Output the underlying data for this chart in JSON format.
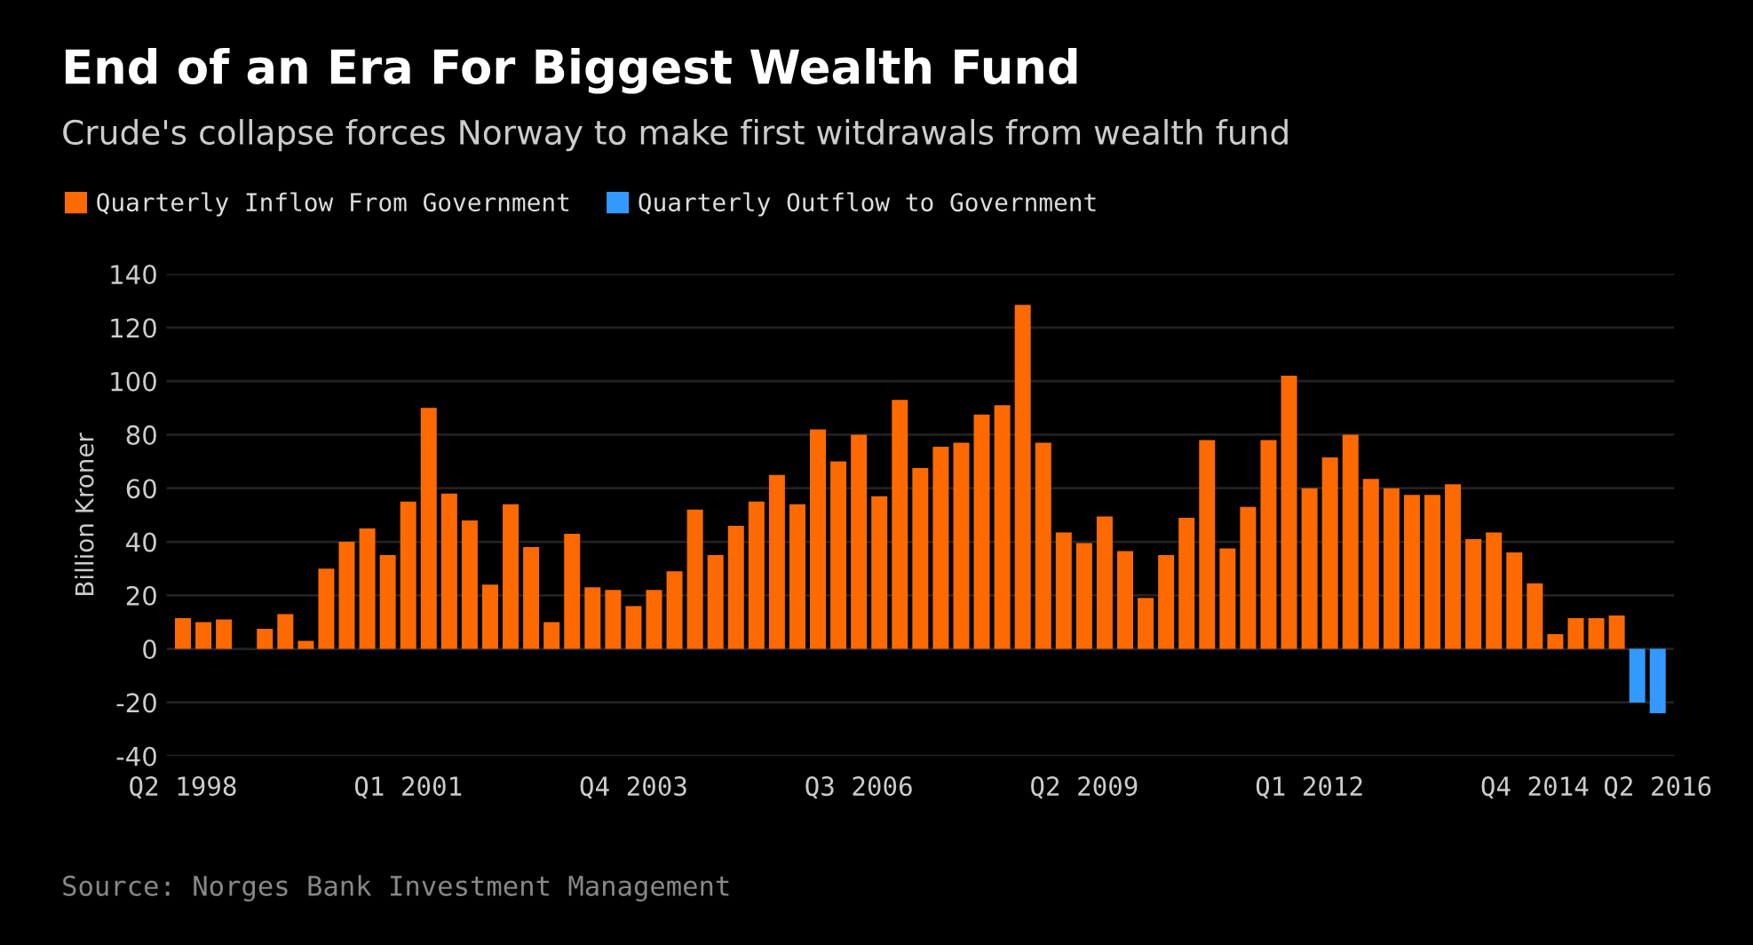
{
  "chart_data": {
    "type": "bar",
    "title": "End of an Era For Biggest Wealth Fund",
    "subtitle": "Crude's collapse forces Norway to make first witdrawals from wealth fund",
    "ylabel": "Billion Kroner",
    "categories": [
      "Q2 1998",
      null,
      null,
      null,
      null,
      null,
      null,
      null,
      null,
      null,
      null,
      "Q1 2001",
      null,
      null,
      null,
      null,
      null,
      null,
      null,
      null,
      null,
      null,
      "Q4 2003",
      null,
      null,
      null,
      null,
      null,
      null,
      null,
      null,
      null,
      null,
      "Q3 2006",
      null,
      null,
      null,
      null,
      null,
      null,
      null,
      null,
      null,
      null,
      "Q2 2009",
      null,
      null,
      null,
      null,
      null,
      null,
      null,
      null,
      null,
      null,
      "Q1 2012",
      null,
      null,
      null,
      null,
      null,
      null,
      null,
      null,
      null,
      null,
      "Q4 2014",
      null,
      null,
      null,
      null,
      null,
      "Q2 2016"
    ],
    "series": [
      {
        "name": "Quarterly Inflow From Government",
        "color": "#ff6a00",
        "values": [
          11.5,
          10,
          11,
          null,
          7.5,
          13,
          3,
          30,
          40,
          45,
          35,
          55,
          90,
          58,
          48,
          24,
          54,
          38,
          10,
          43,
          23,
          22,
          16,
          22,
          29,
          52,
          35,
          46,
          55,
          65,
          54,
          82,
          70,
          80,
          57,
          93,
          67.5,
          75.5,
          77,
          87.5,
          91,
          128.5,
          77,
          43.5,
          39.5,
          49.5,
          36.5,
          19,
          35,
          49,
          78,
          37.5,
          53,
          78,
          102,
          60,
          71.5,
          80,
          63.5,
          60,
          57.5,
          57.5,
          61.5,
          41,
          43.5,
          36,
          24.5,
          5.5,
          11.5,
          11.5,
          12.5,
          null,
          null
        ]
      },
      {
        "name": "Quarterly Outflow to Government",
        "color": "#3399ff",
        "values": [
          null,
          null,
          null,
          null,
          null,
          null,
          null,
          null,
          null,
          null,
          null,
          null,
          null,
          null,
          null,
          null,
          null,
          null,
          null,
          null,
          null,
          null,
          null,
          null,
          null,
          null,
          null,
          null,
          null,
          null,
          null,
          null,
          null,
          null,
          null,
          null,
          null,
          null,
          null,
          null,
          null,
          null,
          null,
          null,
          null,
          null,
          null,
          null,
          null,
          null,
          null,
          null,
          null,
          null,
          null,
          null,
          null,
          null,
          null,
          null,
          null,
          null,
          null,
          null,
          null,
          null,
          null,
          null,
          null,
          null,
          null,
          -20,
          -24
        ]
      }
    ],
    "ylim": [
      -40,
      140
    ],
    "yticks": [
      -40,
      -20,
      0,
      20,
      40,
      60,
      80,
      100,
      120,
      140
    ],
    "grid": "y",
    "legend": "top left",
    "annotations": [
      "Source: Norges Bank Investment Management"
    ]
  }
}
